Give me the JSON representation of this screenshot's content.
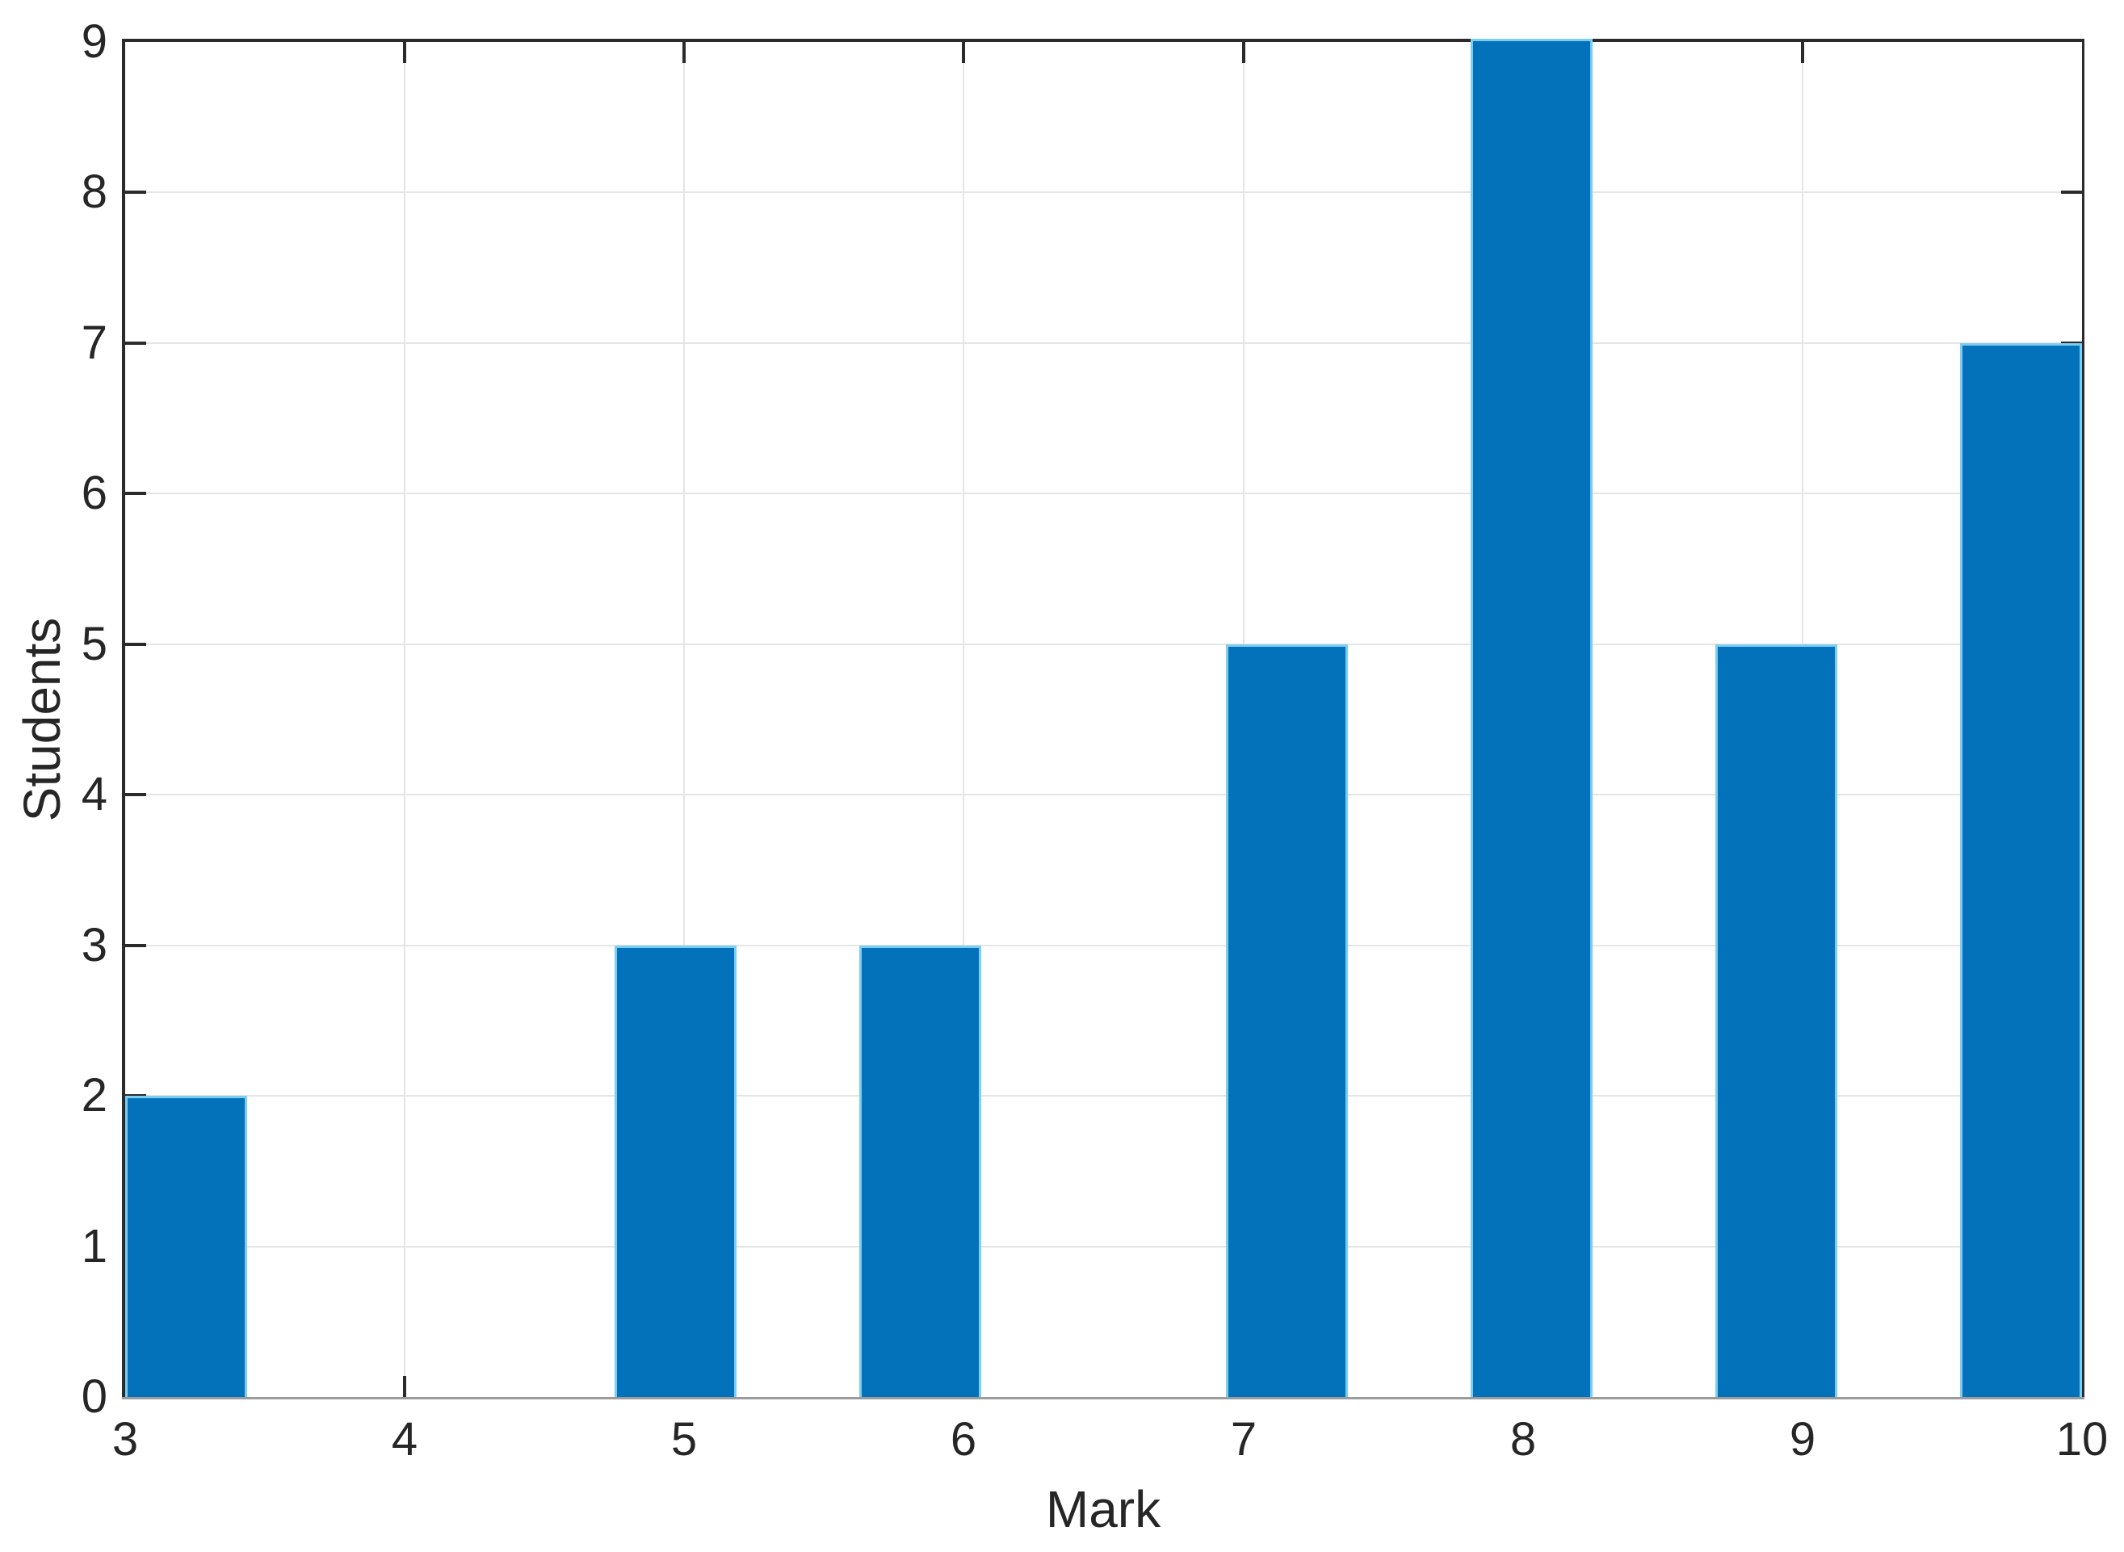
{
  "figure": {
    "xlabel": "Mark",
    "ylabel": "Students"
  },
  "colors": {
    "background": "#FFFFFF",
    "bar_fill": "#0472BA",
    "bar_edge": "#7CCDF0",
    "grid": "#E5E5E5",
    "axis_dark": "#2B2B2B",
    "axis_light": "#9B9B9B",
    "text": "#262626"
  },
  "chart_data": {
    "type": "bar",
    "title": "",
    "xlabel": "Mark",
    "ylabel": "Students",
    "xlim": [
      3,
      10
    ],
    "ylim": [
      0,
      9
    ],
    "x_ticks": [
      3,
      4,
      5,
      6,
      7,
      8,
      9,
      10
    ],
    "y_ticks": [
      0,
      1,
      2,
      3,
      4,
      5,
      6,
      7,
      8,
      9
    ],
    "grid": "on",
    "legend": "none",
    "n_bins": 16,
    "bin_width": 0.4375,
    "categories": [
      "3",
      "5",
      "6",
      "7",
      "8",
      "9",
      "10"
    ],
    "values": [
      2,
      3,
      3,
      5,
      9,
      5,
      7
    ],
    "bars": [
      {
        "mark": 3,
        "students": 2,
        "bin_index": 0,
        "bin_start": 3.0,
        "bin_end": 3.4375
      },
      {
        "mark": 5,
        "students": 3,
        "bin_index": 4,
        "bin_start": 4.75,
        "bin_end": 5.1875
      },
      {
        "mark": 6,
        "students": 3,
        "bin_index": 6,
        "bin_start": 5.625,
        "bin_end": 6.0625
      },
      {
        "mark": 7,
        "students": 5,
        "bin_index": 9,
        "bin_start": 6.9375,
        "bin_end": 7.375
      },
      {
        "mark": 8,
        "students": 9,
        "bin_index": 11,
        "bin_start": 7.8125,
        "bin_end": 8.25
      },
      {
        "mark": 9,
        "students": 5,
        "bin_index": 13,
        "bin_start": 8.6875,
        "bin_end": 9.125
      },
      {
        "mark": 10,
        "students": 7,
        "bin_index": 15,
        "bin_start": 9.5625,
        "bin_end": 10.0
      }
    ]
  }
}
